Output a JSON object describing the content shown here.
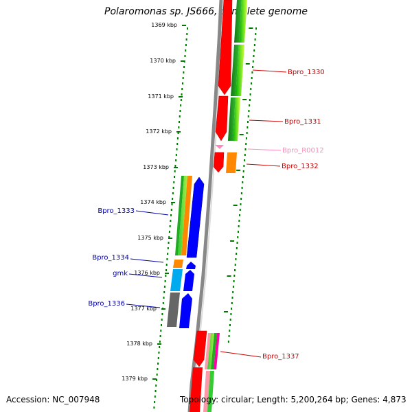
{
  "title": "Polaromonas sp. JS666, complete genome",
  "footer": {
    "accession": "Accession: NC_007948",
    "summary": "Topology: circular; Length: 5,200,264 bp; Genes: 4,873"
  },
  "ticks": [
    "1369 kbp",
    "1370 kbp",
    "1371 kbp",
    "1372 kbp",
    "1373 kbp",
    "1374 kbp",
    "1375 kbp",
    "1376 kbp",
    "1377 kbp",
    "1378 kbp",
    "1379 kbp"
  ],
  "genes": [
    {
      "label": "Bpro_1330",
      "color": "#cc0000"
    },
    {
      "label": "Bpro_1331",
      "color": "#cc0000"
    },
    {
      "label": "Bpro_R0012",
      "color": "#ff88bb"
    },
    {
      "label": "Bpro_1332",
      "color": "#cc0000"
    },
    {
      "label": "Bpro_1333",
      "color": "#0000aa"
    },
    {
      "label": "Bpro_1334",
      "color": "#0000aa"
    },
    {
      "label": "gmk",
      "color": "#0000aa"
    },
    {
      "label": "Bpro_1336",
      "color": "#0000aa"
    },
    {
      "label": "Bpro_1337",
      "color": "#cc0000"
    }
  ],
  "colors": {
    "backbone": "#888888",
    "tick": "#007700",
    "forward_cds": "#ff0000",
    "reverse_cds": "#0000ff",
    "rna": "#ff88bb"
  }
}
